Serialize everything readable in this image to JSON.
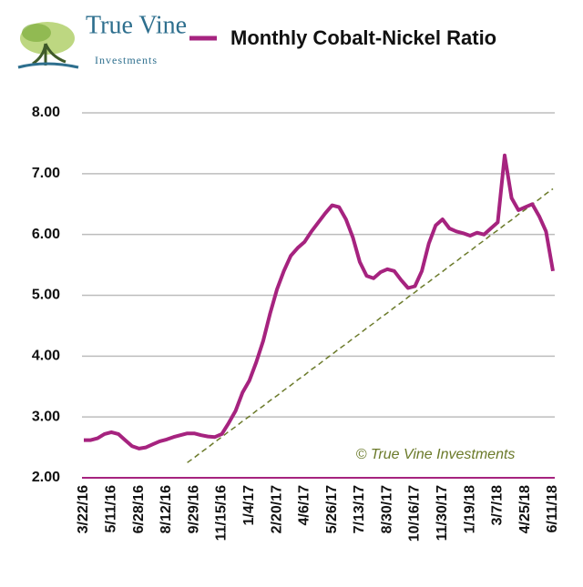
{
  "logo": {
    "name": "True Vine",
    "tagline": "Investments"
  },
  "chart_data": {
    "type": "line",
    "annotation": "© True Vine Investments",
    "categories": [
      "3/22/16",
      null,
      null,
      null,
      "5/11/16",
      null,
      null,
      null,
      "6/28/16",
      null,
      null,
      null,
      "8/12/16",
      null,
      null,
      null,
      "9/29/16",
      null,
      null,
      null,
      "11/15/16",
      null,
      null,
      null,
      "1/4/17",
      null,
      null,
      null,
      "2/20/17",
      null,
      null,
      null,
      "4/6/17",
      null,
      null,
      null,
      "5/26/17",
      null,
      null,
      null,
      "7/13/17",
      null,
      null,
      null,
      "8/30/17",
      null,
      null,
      null,
      "10/16/17",
      null,
      null,
      null,
      "11/30/17",
      null,
      null,
      null,
      "1/19/18",
      null,
      null,
      null,
      "3/7/18",
      null,
      null,
      null,
      "4/25/18",
      null,
      null,
      null,
      "6/11/18"
    ],
    "series": [
      {
        "name": "Monthly Cobalt-Nickel Ratio",
        "color": "#a6237f",
        "values": [
          2.62,
          2.62,
          2.65,
          2.72,
          2.75,
          2.72,
          2.62,
          2.52,
          2.48,
          2.5,
          2.55,
          2.6,
          2.63,
          2.67,
          2.7,
          2.73,
          2.73,
          2.7,
          2.68,
          2.67,
          2.72,
          2.9,
          3.1,
          3.4,
          3.6,
          3.9,
          4.25,
          4.7,
          5.1,
          5.4,
          5.65,
          5.78,
          5.88,
          6.05,
          6.2,
          6.35,
          6.48,
          6.45,
          6.25,
          5.95,
          5.55,
          5.32,
          5.28,
          5.38,
          5.43,
          5.4,
          5.25,
          5.12,
          5.15,
          5.4,
          5.85,
          6.15,
          6.25,
          6.1,
          6.05,
          6.02,
          5.98,
          6.03,
          6.0,
          6.1,
          6.2,
          7.3,
          6.6,
          6.4,
          6.45,
          6.5,
          6.3,
          6.05,
          5.4
        ]
      }
    ],
    "trendline": {
      "color": "#6b7a2a",
      "values": [
        null,
        null,
        null,
        null,
        null,
        null,
        null,
        null,
        null,
        null,
        null,
        null,
        null,
        null,
        null,
        2.25,
        2.33,
        2.42,
        2.5,
        2.59,
        2.67,
        2.76,
        2.84,
        2.93,
        3.01,
        3.1,
        3.18,
        3.27,
        3.35,
        3.44,
        3.52,
        3.61,
        3.69,
        3.78,
        3.86,
        3.95,
        4.03,
        4.12,
        4.2,
        4.29,
        4.37,
        4.46,
        4.54,
        4.63,
        4.71,
        4.8,
        4.88,
        4.97,
        5.05,
        5.14,
        5.22,
        5.31,
        5.39,
        5.48,
        5.56,
        5.65,
        5.73,
        5.82,
        5.9,
        5.99,
        6.07,
        6.16,
        6.24,
        6.33,
        6.41,
        6.5,
        6.58,
        6.67,
        6.75
      ]
    },
    "ylim": [
      2,
      8
    ],
    "yticks": [
      {
        "value": 2,
        "label": "2.00"
      },
      {
        "value": 3,
        "label": "3.00"
      },
      {
        "value": 4,
        "label": "4.00"
      },
      {
        "value": 5,
        "label": "5.00"
      },
      {
        "value": 6,
        "label": "6.00"
      },
      {
        "value": 7,
        "label": "7.00"
      },
      {
        "value": 8,
        "label": "8.00"
      }
    ],
    "grid": true,
    "grid_color": "#bdbdbd"
  }
}
